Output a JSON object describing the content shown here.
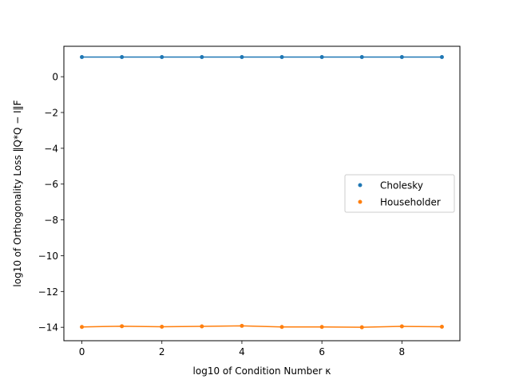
{
  "chart_data": {
    "type": "line",
    "xlabel": "log10 of Condition Number κ",
    "ylabel": "log10 of Orthogonality Loss ‖Q*Q − I‖F",
    "xlim": [
      -0.45,
      9.45
    ],
    "ylim": [
      -14.75,
      1.7
    ],
    "grid": false,
    "legend_position": "center-right",
    "x_ticks": [
      0,
      2,
      4,
      6,
      8
    ],
    "x_tick_labels": [
      "0",
      "2",
      "4",
      "6",
      "8"
    ],
    "y_ticks": [
      0,
      -2,
      -4,
      -6,
      -8,
      -10,
      -12,
      -14
    ],
    "y_tick_labels": [
      "0",
      "−2",
      "−4",
      "−6",
      "−8",
      "−10",
      "−12",
      "−14"
    ],
    "x": [
      0,
      1,
      2,
      3,
      4,
      5,
      6,
      7,
      8,
      9
    ],
    "series": [
      {
        "name": "Cholesky",
        "color": "#1f77b4",
        "values": [
          1.1,
          1.1,
          1.1,
          1.1,
          1.1,
          1.1,
          1.1,
          1.1,
          1.1,
          1.1
        ]
      },
      {
        "name": "Householder",
        "color": "#ff7f0e",
        "values": [
          -13.98,
          -13.94,
          -13.97,
          -13.95,
          -13.92,
          -13.98,
          -13.98,
          -14.0,
          -13.95,
          -13.97
        ]
      }
    ]
  }
}
